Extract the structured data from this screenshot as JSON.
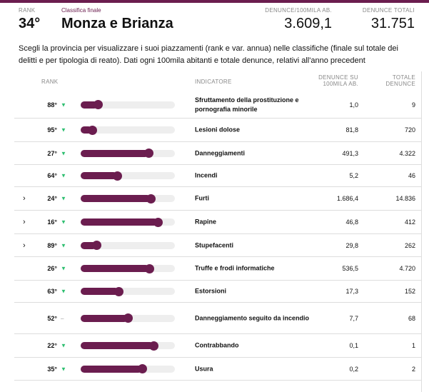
{
  "header": {
    "rank_label": "RANK",
    "rank": "34°",
    "subtitle": "Classifica finale",
    "title": "Monza e Brianza",
    "rate_label": "DENUNCE/100MILA AB.",
    "rate": "3.609,1",
    "total_label": "DENUNCE TOTALI",
    "total": "31.751"
  },
  "description": "Scegli la provincia per visualizzare i suoi piazzamenti (rank e var. annua) nelle classifiche (finale sul totale dei delitti e per tipologia di reato). Dati ogni 100mila abitanti e totale denunce, relativi all'anno precedent",
  "table": {
    "columns": [
      "RANK",
      "INDICATORE",
      "DENUNCE SU 100MILA AB.",
      "TOTALE DENUNCE"
    ],
    "rows": [
      {
        "rank": "88°",
        "trend": "▼",
        "score": 18,
        "indicator": "Sfruttamento della prostituzione e pornografia minorile",
        "rate": "1,0",
        "total": "9",
        "expandable": false
      },
      {
        "rank": "95°",
        "trend": "▼",
        "score": 12,
        "indicator": "Lesioni dolose",
        "rate": "81,8",
        "total": "720",
        "expandable": false
      },
      {
        "rank": "27°",
        "trend": "▼",
        "score": 72,
        "indicator": "Danneggiamenti",
        "rate": "491,3",
        "total": "4.322",
        "expandable": false
      },
      {
        "rank": "64°",
        "trend": "▼",
        "score": 39,
        "indicator": "Incendi",
        "rate": "5,2",
        "total": "46",
        "expandable": false
      },
      {
        "rank": "24°",
        "trend": "▼",
        "score": 74,
        "indicator": "Furti",
        "rate": "1.686,4",
        "total": "14.836",
        "expandable": true
      },
      {
        "rank": "16°",
        "trend": "▼",
        "score": 82,
        "indicator": "Rapine",
        "rate": "46,8",
        "total": "412",
        "expandable": true
      },
      {
        "rank": "89°",
        "trend": "▼",
        "score": 17,
        "indicator": "Stupefacenti",
        "rate": "29,8",
        "total": "262",
        "expandable": true
      },
      {
        "rank": "26°",
        "trend": "▼",
        "score": 73,
        "indicator": "Truffe e frodi informatiche",
        "rate": "536,5",
        "total": "4.720",
        "expandable": false
      },
      {
        "rank": "63°",
        "trend": "▼",
        "score": 40,
        "indicator": "Estorsioni",
        "rate": "17,3",
        "total": "152",
        "expandable": false
      },
      {
        "rank": "52°",
        "trend": "–",
        "score": 50,
        "indicator": "Danneggiamento seguito da incendio",
        "rate": "7,7",
        "total": "68",
        "expandable": false
      },
      {
        "rank": "22°",
        "trend": "▼",
        "score": 77,
        "indicator": "Contrabbando",
        "rate": "0,1",
        "total": "1",
        "expandable": false
      },
      {
        "rank": "35°",
        "trend": "▼",
        "score": 65,
        "indicator": "Usura",
        "rate": "0,2",
        "total": "2",
        "expandable": false
      }
    ]
  }
}
